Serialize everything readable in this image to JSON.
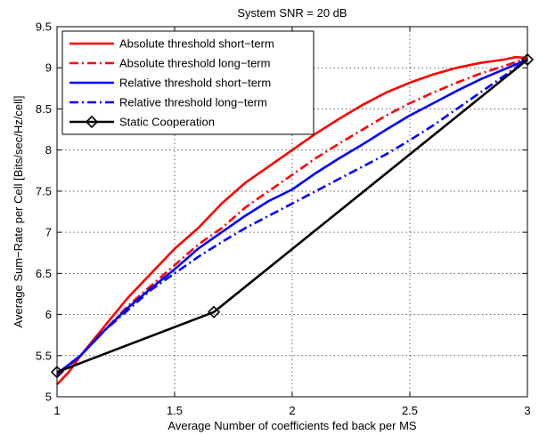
{
  "chart_data": {
    "type": "line",
    "title": "System SNR = 20 dB",
    "xlabel": "Average Number of coefficients fed back per MS",
    "ylabel": "Average Sum−Rate per Cell [Bits/sec/Hz/cell]",
    "xlim": [
      1,
      3
    ],
    "ylim": [
      5,
      9.5
    ],
    "xticks": [
      1,
      1.5,
      2,
      2.5,
      3
    ],
    "xtick_labels": [
      "1",
      "1.5",
      "2",
      "2.5",
      "3"
    ],
    "yticks": [
      5,
      5.5,
      6,
      6.5,
      7,
      7.5,
      8,
      8.5,
      9,
      9.5
    ],
    "ytick_labels": [
      "5",
      "5.5",
      "6",
      "6.5",
      "7",
      "7.5",
      "8",
      "8.5",
      "9",
      "9.5"
    ],
    "grid": true,
    "legend_position": "top-left",
    "series": [
      {
        "name": "Absolute threshold short−term",
        "color": "#ff0000",
        "style": "solid",
        "marker": "none",
        "x": [
          1.0,
          1.05,
          1.1,
          1.2,
          1.3,
          1.4,
          1.5,
          1.6,
          1.7,
          1.8,
          1.9,
          2.0,
          2.1,
          2.2,
          2.3,
          2.4,
          2.5,
          2.6,
          2.7,
          2.8,
          2.9,
          2.95,
          3.0
        ],
        "y": [
          5.15,
          5.3,
          5.5,
          5.85,
          6.2,
          6.5,
          6.8,
          7.05,
          7.35,
          7.6,
          7.8,
          8.0,
          8.2,
          8.38,
          8.55,
          8.7,
          8.82,
          8.92,
          9.0,
          9.06,
          9.1,
          9.13,
          9.12
        ]
      },
      {
        "name": "Absolute threshold long−term",
        "color": "#ff0000",
        "style": "dashdot",
        "marker": "none",
        "x": [
          1.0,
          1.1,
          1.2,
          1.3,
          1.4,
          1.5,
          1.6,
          1.7,
          1.8,
          1.9,
          2.0,
          2.1,
          2.2,
          2.3,
          2.4,
          2.5,
          2.6,
          2.7,
          2.8,
          2.9,
          3.0
        ],
        "y": [
          5.25,
          5.5,
          5.8,
          6.1,
          6.35,
          6.6,
          6.85,
          7.05,
          7.3,
          7.5,
          7.7,
          7.9,
          8.08,
          8.25,
          8.42,
          8.57,
          8.7,
          8.82,
          8.93,
          9.02,
          9.12
        ]
      },
      {
        "name": "Relative threshold short−term",
        "color": "#0000ff",
        "style": "solid",
        "marker": "none",
        "x": [
          1.0,
          1.1,
          1.2,
          1.3,
          1.4,
          1.5,
          1.6,
          1.7,
          1.8,
          1.9,
          2.0,
          2.05,
          2.1,
          2.2,
          2.3,
          2.4,
          2.5,
          2.6,
          2.7,
          2.8,
          2.9,
          3.0
        ],
        "y": [
          5.28,
          5.5,
          5.8,
          6.08,
          6.32,
          6.55,
          6.8,
          7.0,
          7.2,
          7.38,
          7.52,
          7.62,
          7.72,
          7.9,
          8.07,
          8.25,
          8.42,
          8.57,
          8.72,
          8.86,
          8.98,
          9.1
        ]
      },
      {
        "name": "Relative threshold long−term",
        "color": "#0000ff",
        "style": "dashdot",
        "marker": "none",
        "x": [
          1.0,
          1.1,
          1.2,
          1.3,
          1.4,
          1.5,
          1.6,
          1.7,
          1.8,
          1.9,
          2.0,
          2.1,
          2.2,
          2.3,
          2.4,
          2.5,
          2.6,
          2.7,
          2.8,
          2.9,
          3.0
        ],
        "y": [
          5.28,
          5.5,
          5.8,
          6.05,
          6.3,
          6.5,
          6.7,
          6.88,
          7.05,
          7.2,
          7.35,
          7.5,
          7.65,
          7.8,
          7.95,
          8.12,
          8.3,
          8.5,
          8.7,
          8.9,
          9.1
        ]
      },
      {
        "name": "Static Cooperation",
        "color": "#000000",
        "style": "solid",
        "marker": "diamond",
        "x": [
          1.0,
          1.667,
          3.0
        ],
        "y": [
          5.3,
          6.03,
          9.1
        ]
      }
    ]
  }
}
